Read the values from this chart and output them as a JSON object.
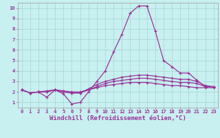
{
  "background_color": "#c8f0f0",
  "grid_color": "#a8d8d8",
  "line_color": "#993399",
  "xlabel": "Windchill (Refroidissement éolien,°C)",
  "xlim": [
    -0.5,
    23.5
  ],
  "ylim": [
    0.5,
    10.5
  ],
  "xticks": [
    0,
    1,
    2,
    3,
    4,
    5,
    6,
    7,
    8,
    9,
    10,
    11,
    12,
    13,
    14,
    15,
    16,
    17,
    18,
    19,
    20,
    21,
    22,
    23
  ],
  "yticks": [
    1,
    2,
    3,
    4,
    5,
    6,
    7,
    8,
    9,
    10
  ],
  "lines": [
    [
      2.2,
      1.9,
      2.0,
      1.5,
      2.2,
      1.8,
      0.85,
      1.0,
      2.0,
      3.0,
      4.0,
      5.8,
      7.5,
      9.5,
      10.2,
      10.2,
      7.8,
      5.0,
      4.4,
      3.8,
      3.8,
      3.1,
      2.5,
      2.5
    ],
    [
      2.2,
      1.9,
      2.0,
      2.0,
      2.2,
      2.0,
      1.9,
      1.9,
      2.3,
      2.7,
      3.0,
      3.2,
      3.4,
      3.5,
      3.6,
      3.6,
      3.5,
      3.4,
      3.3,
      3.2,
      3.2,
      3.0,
      2.6,
      2.5
    ],
    [
      2.2,
      1.9,
      2.0,
      2.0,
      2.2,
      2.0,
      1.9,
      1.9,
      2.2,
      2.5,
      2.8,
      3.0,
      3.1,
      3.2,
      3.3,
      3.3,
      3.2,
      3.1,
      3.0,
      2.9,
      2.9,
      2.8,
      2.5,
      2.5
    ],
    [
      2.2,
      1.9,
      2.0,
      2.1,
      2.2,
      2.1,
      2.0,
      2.0,
      2.2,
      2.4,
      2.6,
      2.7,
      2.8,
      2.9,
      2.9,
      2.9,
      2.8,
      2.7,
      2.6,
      2.6,
      2.5,
      2.4,
      2.4,
      2.4
    ]
  ],
  "xlabel_fontsize": 6.5,
  "tick_fontsize": 5.2,
  "marker_size": 2.5,
  "line_width": 0.9
}
